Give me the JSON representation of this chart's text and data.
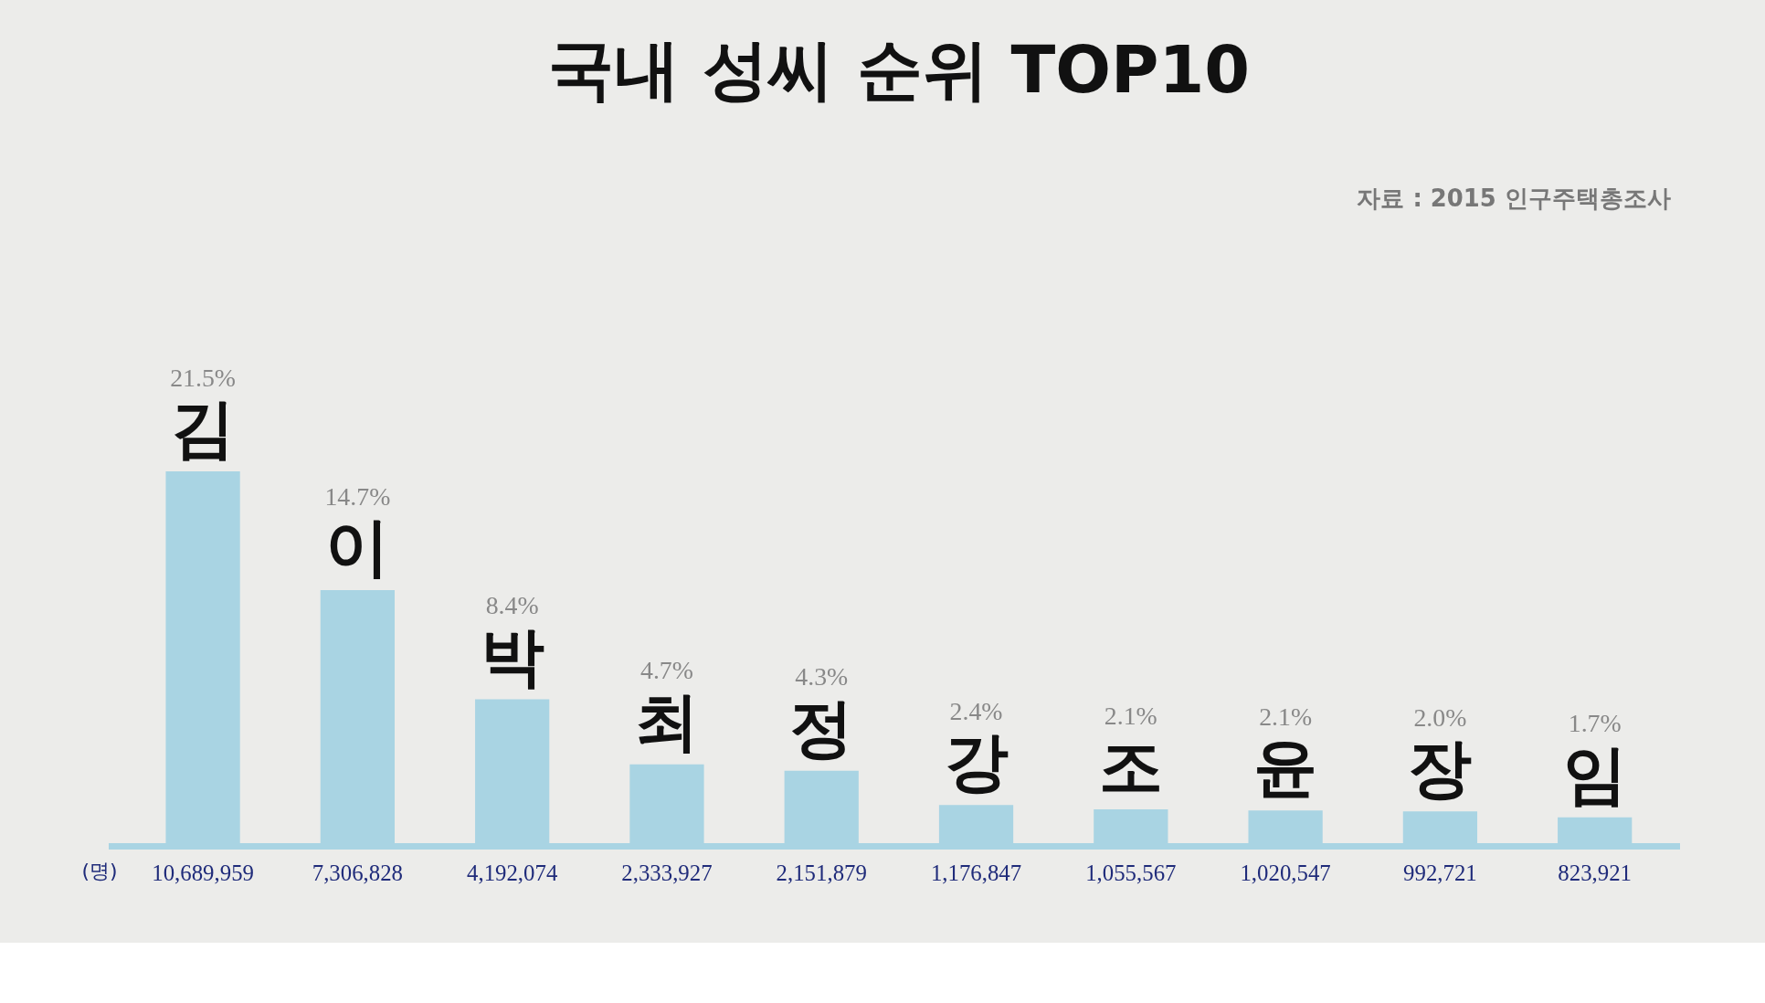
{
  "chart_data": {
    "type": "bar",
    "title": "국내 성씨 순위 TOP10",
    "ylabel": "(명)",
    "categories": [
      "김",
      "이",
      "박",
      "최",
      "정",
      "강",
      "조",
      "윤",
      "장",
      "임"
    ],
    "values": [
      10689959,
      7306828,
      4192074,
      2333927,
      2151879,
      1176847,
      1055567,
      1020547,
      992721,
      823921
    ],
    "value_labels": [
      "10,689,959",
      "7,306,828",
      "4,192,074",
      "2,333,927",
      "2,151,879",
      "1,176,847",
      "1,055,567",
      "1,020,547",
      "992,721",
      "823,921"
    ],
    "color": "#a9d4e3",
    "annotations": [
      "자료 : 2015 인구주택총조사",
      "21.5%",
      "14.7%",
      "8.4%",
      "4.7%",
      "4.3%",
      "2.4%",
      "2.1%",
      "2.1%",
      "2.0%",
      "1.7%"
    ]
  }
}
